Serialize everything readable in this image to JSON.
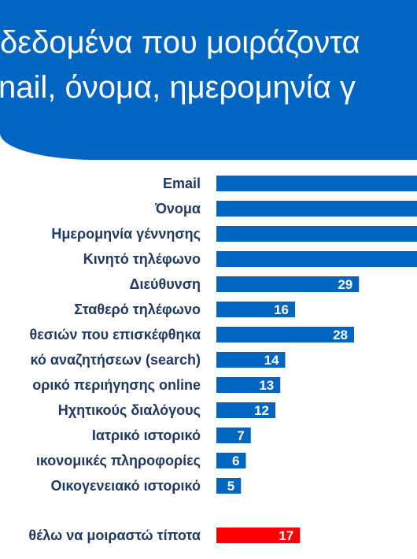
{
  "header": {
    "line1": "δεδομένα που μοιράζοντα",
    "line2": "nail, όνομα, ημερομηνία γ"
  },
  "colors": {
    "header_bg": "#0066c2",
    "bar": "#0066c2",
    "highlight_bar": "#ff0000",
    "label_text": "#1f3864",
    "value_text": "#ffffff"
  },
  "chart_data": {
    "type": "bar",
    "orientation": "horizontal",
    "categories": [
      "Email",
      "Όνομα",
      "Ημερομηνία γέννησης",
      "Κινητό τηλέφωνο",
      "Διεύθυνση",
      "Σταθερό τηλέφωνο",
      "θεσιών που επισκέφθηκα",
      "κό αναζητήσεων (search)",
      "ορικό περιήγησης online",
      "Ηχητικούς διαλόγους",
      "Ιατρικό ιστορικό",
      "ικονομικές πληροφορίες",
      "Οικογενειακό ιστορικό",
      "θέλω να μοιραστώ τίποτα"
    ],
    "values": [
      null,
      null,
      null,
      null,
      29,
      16,
      28,
      14,
      13,
      12,
      7,
      6,
      5,
      17
    ],
    "value_labels": [
      "",
      "",
      "",
      "",
      "29",
      "16",
      "28",
      "14",
      "13",
      "12",
      "7",
      "6",
      "5",
      "17"
    ],
    "highlight_index": 13,
    "xlim": [
      0,
      55
    ],
    "grid": false,
    "legend": "none"
  }
}
